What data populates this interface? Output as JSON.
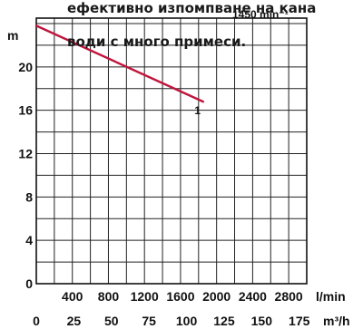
{
  "overlay_text": {
    "line1": "ефективно изпомпване на кана",
    "line2": "води с много примеси."
  },
  "chart_data": {
    "type": "line",
    "speed_label": "1450 min⁻¹",
    "y_unit": "m",
    "x_unit_lmin": "l/min",
    "x_unit_m3h": "m³/h",
    "y_ticks": [
      "0",
      "4",
      "8",
      "12",
      "16",
      "20"
    ],
    "y_tick_values": [
      0,
      4,
      8,
      12,
      16,
      20
    ],
    "x_ticks_lmin": [
      "400",
      "800",
      "1200",
      "1600",
      "2000",
      "2400",
      "2800"
    ],
    "x_tick_values_lmin": [
      400,
      800,
      1200,
      1600,
      2000,
      2400,
      2800
    ],
    "x_ticks_m3h": [
      "0",
      "25",
      "50",
      "75",
      "100",
      "125",
      "150",
      "175"
    ],
    "x_tick_values_m3h": [
      0,
      25,
      50,
      75,
      100,
      125,
      150,
      175
    ],
    "xlim_lmin": [
      0,
      3000
    ],
    "ylim": [
      0,
      24.5
    ],
    "grid": true,
    "series": [
      {
        "name": "1",
        "color": "#c0143c",
        "points": [
          [
            0,
            23.8
          ],
          [
            1850,
            16.8
          ]
        ]
      }
    ]
  }
}
